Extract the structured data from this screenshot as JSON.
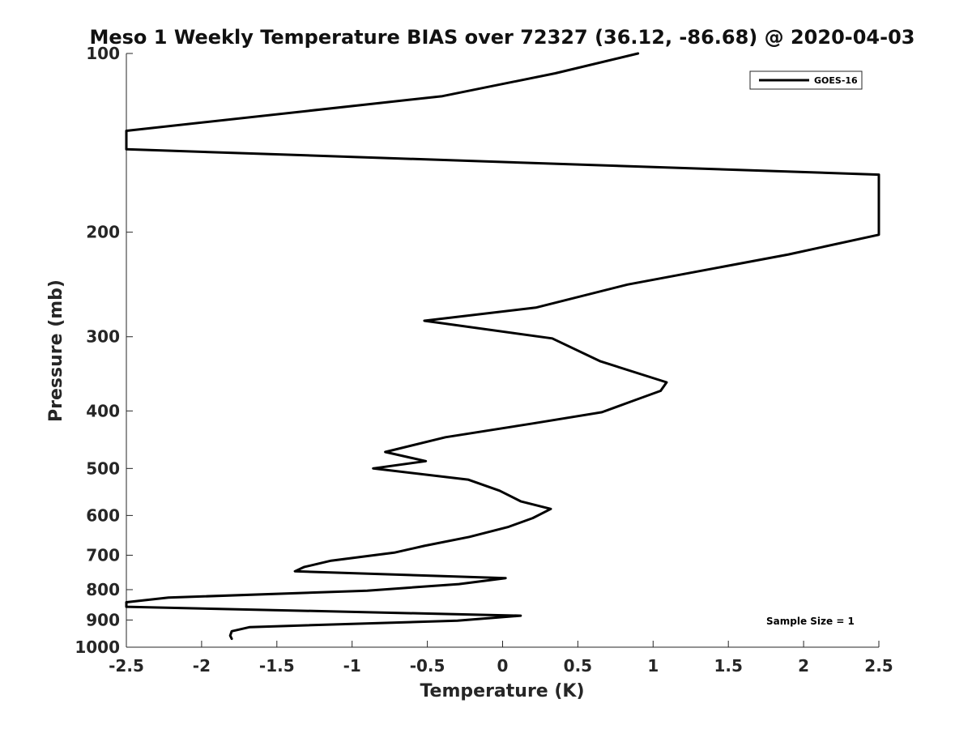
{
  "chart_data": {
    "type": "line",
    "title": "Meso 1 Weekly Temperature BIAS over 72327 (36.12, -86.68) @ 2020-04-03",
    "xlabel": "Temperature (K)",
    "ylabel": "Pressure (mb)",
    "xlim": [
      -2.5,
      2.5
    ],
    "ylim": [
      100,
      1000
    ],
    "yscale": "log",
    "y_reversed": true,
    "x_ticks": [
      -2.5,
      -2,
      -1.5,
      -1,
      -0.5,
      0,
      0.5,
      1,
      1.5,
      2,
      2.5
    ],
    "x_tick_labels": [
      "-2.5",
      "-2",
      "-1.5",
      "-1",
      "-0.5",
      "0",
      "0.5",
      "1",
      "1.5",
      "2",
      "2.5"
    ],
    "y_ticks": [
      100,
      200,
      300,
      400,
      500,
      600,
      700,
      800,
      900,
      1000
    ],
    "y_tick_labels": [
      "100",
      "200",
      "300",
      "400",
      "500",
      "600",
      "700",
      "800",
      "900",
      "1000"
    ],
    "grid": false,
    "legend_position": "top-right",
    "annotation": "Sample Size = 1",
    "series": [
      {
        "name": "GOES-16",
        "color": "#000000",
        "points": [
          [
            0.9,
            100
          ],
          [
            0.35,
            108
          ],
          [
            -0.4,
            118
          ],
          [
            -2.5,
            135
          ],
          [
            -2.5,
            145
          ],
          [
            2.5,
            160
          ],
          [
            2.5,
            202
          ],
          [
            1.9,
            218
          ],
          [
            0.83,
            245
          ],
          [
            0.22,
            268
          ],
          [
            -0.52,
            282
          ],
          [
            0.33,
            302
          ],
          [
            0.65,
            330
          ],
          [
            1.09,
            358
          ],
          [
            1.05,
            370
          ],
          [
            0.85,
            386
          ],
          [
            0.66,
            402
          ],
          [
            0.2,
            420
          ],
          [
            -0.38,
            443
          ],
          [
            -0.78,
            469
          ],
          [
            -0.51,
            486
          ],
          [
            -0.86,
            500
          ],
          [
            -0.23,
            522
          ],
          [
            -0.02,
            545
          ],
          [
            0.12,
            568
          ],
          [
            0.32,
            585
          ],
          [
            0.2,
            606
          ],
          [
            0.04,
            627
          ],
          [
            -0.22,
            652
          ],
          [
            -0.52,
            675
          ],
          [
            -0.72,
            693
          ],
          [
            -1.14,
            715
          ],
          [
            -1.32,
            733
          ],
          [
            -1.38,
            745
          ],
          [
            0.02,
            765
          ],
          [
            -0.29,
            783
          ],
          [
            -0.9,
            803
          ],
          [
            -2.22,
            825
          ],
          [
            -2.5,
            840
          ],
          [
            -2.5,
            855
          ],
          [
            0.12,
            885
          ],
          [
            -0.3,
            902
          ],
          [
            -1.68,
            925
          ],
          [
            -1.8,
            940
          ],
          [
            -1.81,
            956
          ],
          [
            -1.8,
            968
          ]
        ]
      }
    ]
  }
}
